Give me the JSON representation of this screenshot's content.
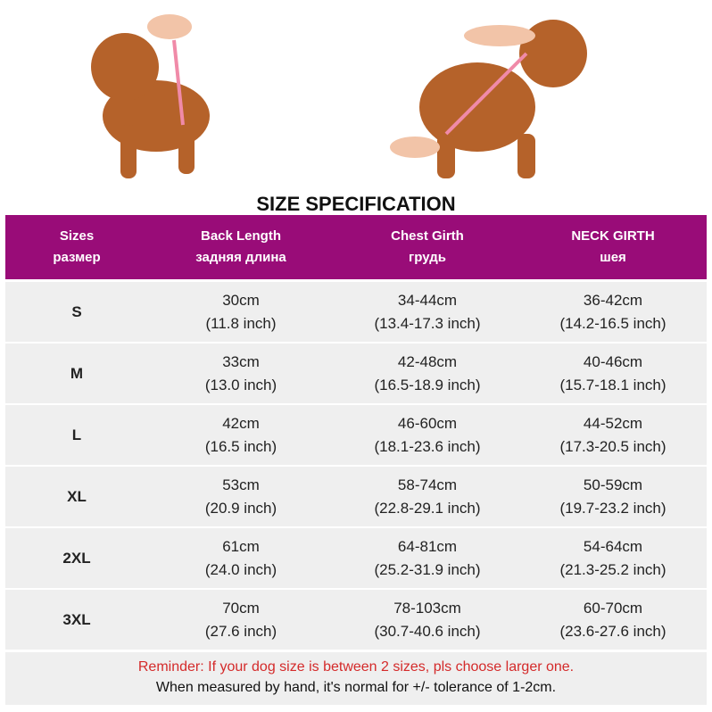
{
  "title": "SIZE SPECIFICATION",
  "table": {
    "header": [
      [
        "Sizes",
        "размер"
      ],
      [
        "Back Length",
        "задняя длина"
      ],
      [
        "Chest Girth",
        "грудь"
      ],
      [
        "NECK GIRTH",
        "шея"
      ]
    ],
    "rows": [
      [
        "S",
        [
          "30cm",
          "(11.8 inch)"
        ],
        [
          "34-44cm",
          "(13.4-17.3 inch)"
        ],
        [
          "36-42cm",
          "(14.2-16.5 inch)"
        ]
      ],
      [
        "M",
        [
          "33cm",
          "(13.0 inch)"
        ],
        [
          "42-48cm",
          "(16.5-18.9 inch)"
        ],
        [
          "40-46cm",
          "(15.7-18.1 inch)"
        ]
      ],
      [
        "L",
        [
          "42cm",
          "(16.5 inch)"
        ],
        [
          "46-60cm",
          "(18.1-23.6 inch)"
        ],
        [
          "44-52cm",
          "(17.3-20.5 inch)"
        ]
      ],
      [
        "XL",
        [
          "53cm",
          "(20.9 inch)"
        ],
        [
          "58-74cm",
          "(22.8-29.1 inch)"
        ],
        [
          "50-59cm",
          "(19.7-23.2 inch)"
        ]
      ],
      [
        "2XL",
        [
          "61cm",
          "(24.0 inch)"
        ],
        [
          "64-81cm",
          "(25.2-31.9 inch)"
        ],
        [
          "54-64cm",
          "(21.3-25.2 inch)"
        ]
      ],
      [
        "3XL",
        [
          "70cm",
          "(27.6 inch)"
        ],
        [
          "78-103cm",
          "(30.7-40.6 inch)"
        ],
        [
          "60-70cm",
          "(23.6-27.6 inch)"
        ]
      ]
    ]
  },
  "footer": {
    "reminder": "Reminder: If your dog size is between 2 sizes, pls choose larger one.",
    "note": "When measured by hand, it's normal for +/- tolerance of 1-2cm."
  }
}
